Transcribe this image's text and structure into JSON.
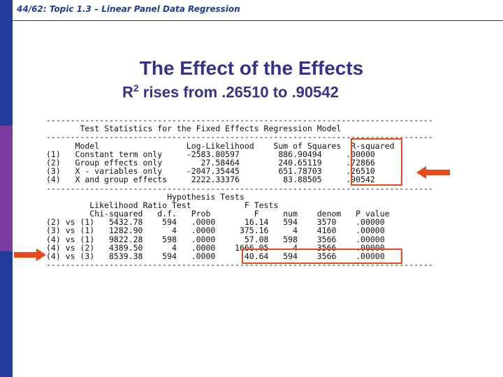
{
  "header": {
    "text": "44/62: Topic 1.3 – Linear Panel Data Regression"
  },
  "slide": {
    "title": "The Effect of the Effects",
    "subtitle_prefix": "R",
    "subtitle_sup": "2",
    "subtitle_rest": " rises from .26510 to .90542"
  },
  "output_lines": [
    "--------------------------------------------------------------------------------",
    "       Test Statistics for the Fixed Effects Regression Model",
    "--------------------------------------------------------------------------------",
    "      Model                  Log-Likelihood    Sum of Squares  R-squared",
    "(1)   Constant term only     -2583.80597        886.90494     .00000",
    "(2)   Group effects only        27.58464        240.65119     .72866",
    "(3)   X - variables only     -2047.35445        651.78703     .26510",
    "(4)   X and group effects     2222.33376         83.88505     .90542",
    "--------------------------------------------------------------------------------",
    "                         Hypothesis Tests",
    "         Likelihood Ratio Test           F Tests",
    "         Chi-squared   d.f.   Prob         F     num    denom   P value",
    "(2) vs (1)   5432.78    594   .0000      16.14   594    3570    .00000",
    "(3) vs (1)   1282.90      4   .0000     375.16     4    4160    .00000",
    "(4) vs (1)   9822.28    598   .0000      57.08   598    3566    .00000",
    "(4) vs (2)   4389.50      4   .0000    1666.05     4    3566    .00000",
    "(4) vs (3)   8539.38    594   .0000      40.64   594    3566    .00000",
    "--------------------------------------------------------------------------------"
  ],
  "colors": {
    "sidebar_blue": "#1f3c99",
    "sidebar_purple": "#7a3aa0",
    "title": "#33338a",
    "highlight": "#e84a1c"
  }
}
